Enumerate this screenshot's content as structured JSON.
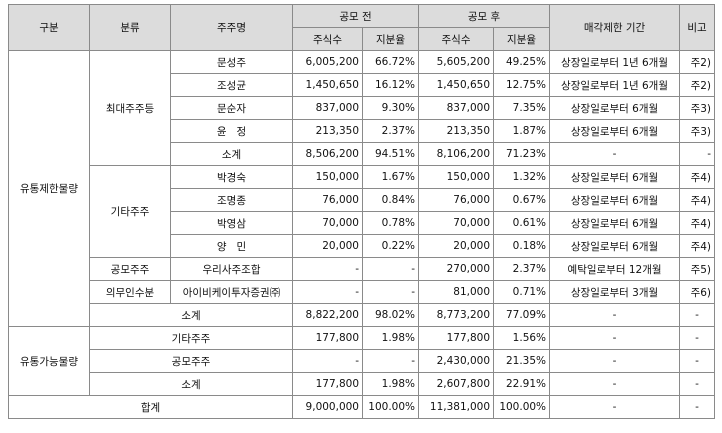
{
  "headers": {
    "category": "구분",
    "type": "분류",
    "holder": "주주명",
    "before": "공모 전",
    "after": "공모 후",
    "shares": "주식수",
    "ratio": "지분율",
    "lockup": "매각제한 기간",
    "note": "비고"
  },
  "rows": [
    {
      "holder": "문성주",
      "before_shares": "6,005,200",
      "before_ratio": "66.72%",
      "after_shares": "5,605,200",
      "after_ratio": "49.25%",
      "lockup": "상장일로부터 1년 6개월",
      "note": "주2)"
    },
    {
      "holder": "조성균",
      "before_shares": "1,450,650",
      "before_ratio": "16.12%",
      "after_shares": "1,450,650",
      "after_ratio": "12.75%",
      "lockup": "상장일로부터 1년 6개월",
      "note": "주2)"
    },
    {
      "holder": "문순자",
      "before_shares": "837,000",
      "before_ratio": "9.30%",
      "after_shares": "837,000",
      "after_ratio": "7.35%",
      "lockup": "상장일로부터 6개월",
      "note": "주3)"
    },
    {
      "holder": "윤   정",
      "before_shares": "213,350",
      "before_ratio": "2.37%",
      "after_shares": "213,350",
      "after_ratio": "1.87%",
      "lockup": "상장일로부터 6개월",
      "note": "주3)"
    },
    {
      "holder": "소계",
      "before_shares": "8,506,200",
      "before_ratio": "94.51%",
      "after_shares": "8,106,200",
      "after_ratio": "71.23%",
      "lockup": "-",
      "note": "-"
    },
    {
      "holder": "박경숙",
      "before_shares": "150,000",
      "before_ratio": "1.67%",
      "after_shares": "150,000",
      "after_ratio": "1.32%",
      "lockup": "상장일로부터 6개월",
      "note": "주4)"
    },
    {
      "holder": "조명종",
      "before_shares": "76,000",
      "before_ratio": "0.84%",
      "after_shares": "76,000",
      "after_ratio": "0.67%",
      "lockup": "상장일로부터 6개월",
      "note": "주4)"
    },
    {
      "holder": "박영삼",
      "before_shares": "70,000",
      "before_ratio": "0.78%",
      "after_shares": "70,000",
      "after_ratio": "0.61%",
      "lockup": "상장일로부터 6개월",
      "note": "주4)"
    },
    {
      "holder": "양   민",
      "before_shares": "20,000",
      "before_ratio": "0.22%",
      "after_shares": "20,000",
      "after_ratio": "0.18%",
      "lockup": "상장일로부터 6개월",
      "note": "주4)"
    },
    {
      "type": "공모주주",
      "holder": "우리사주조합",
      "before_shares": "-",
      "before_ratio": "-",
      "after_shares": "270,000",
      "after_ratio": "2.37%",
      "lockup": "예탁일로부터 12개월",
      "note": "주5)"
    },
    {
      "type": "의무인수분",
      "holder": "아이비케이투자증권㈜",
      "before_shares": "-",
      "before_ratio": "-",
      "after_shares": "81,000",
      "after_ratio": "0.71%",
      "lockup": "상장일로부터 3개월",
      "note": "주6)"
    },
    {
      "holder": "소계",
      "before_shares": "8,822,200",
      "before_ratio": "98.02%",
      "after_shares": "8,773,200",
      "after_ratio": "77.09%",
      "lockup": "-",
      "note": "-"
    },
    {
      "holder": "기타주주",
      "before_shares": "177,800",
      "before_ratio": "1.98%",
      "after_shares": "177,800",
      "after_ratio": "1.56%",
      "lockup": "-",
      "note": "-"
    },
    {
      "holder": "공모주주",
      "before_shares": "-",
      "before_ratio": "-",
      "after_shares": "2,430,000",
      "after_ratio": "21.35%",
      "lockup": "-",
      "note": "-"
    },
    {
      "holder": "소계",
      "before_shares": "177,800",
      "before_ratio": "1.98%",
      "after_shares": "2,607,800",
      "after_ratio": "22.91%",
      "lockup": "-",
      "note": "-"
    },
    {
      "holder": "합계",
      "before_shares": "9,000,000",
      "before_ratio": "100.00%",
      "after_shares": "11,381,000",
      "after_ratio": "100.00%",
      "lockup": "-",
      "note": "-"
    }
  ],
  "groups": {
    "restricted": "유통제한물량",
    "tradable": "유통가능물량",
    "major": "최대주주등",
    "other": "기타주주"
  }
}
